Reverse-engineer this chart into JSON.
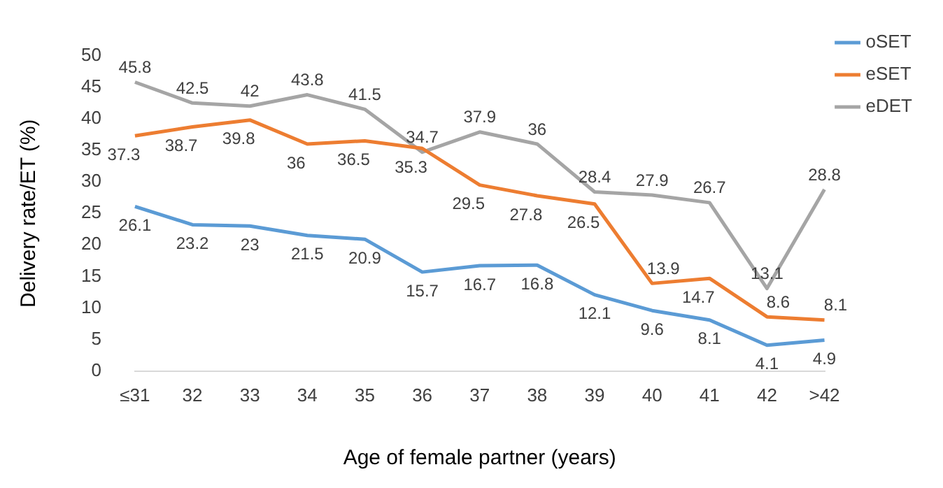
{
  "chart_data": {
    "type": "line",
    "xlabel": "Age of female partner (years)",
    "ylabel": "Delivery rate/ET (%)",
    "categories": [
      "≤31",
      "32",
      "33",
      "34",
      "35",
      "36",
      "37",
      "38",
      "39",
      "40",
      "41",
      "42",
      ">42"
    ],
    "series": [
      {
        "name": "oSET",
        "color": "#5b9bd5",
        "values": [
          26.1,
          23.2,
          23,
          21.5,
          20.9,
          15.7,
          16.7,
          16.8,
          12.1,
          9.6,
          8.1,
          4.1,
          4.9
        ]
      },
      {
        "name": "eSET",
        "color": "#ed7d31",
        "values": [
          37.3,
          38.7,
          39.8,
          36,
          36.5,
          35.3,
          29.5,
          27.8,
          26.5,
          13.9,
          14.7,
          8.6,
          8.1
        ]
      },
      {
        "name": "eDET",
        "color": "#a5a5a5",
        "values": [
          45.8,
          42.5,
          42,
          43.8,
          41.5,
          34.7,
          37.9,
          36,
          28.4,
          27.9,
          26.7,
          13.1,
          28.8
        ]
      }
    ],
    "ylim": [
      0,
      50
    ],
    "yticks": [
      0,
      5,
      10,
      15,
      20,
      25,
      30,
      35,
      40,
      45,
      50
    ],
    "grid": false,
    "legend": "top right",
    "marker": "none",
    "line_style": "solid",
    "data_labels": true
  }
}
